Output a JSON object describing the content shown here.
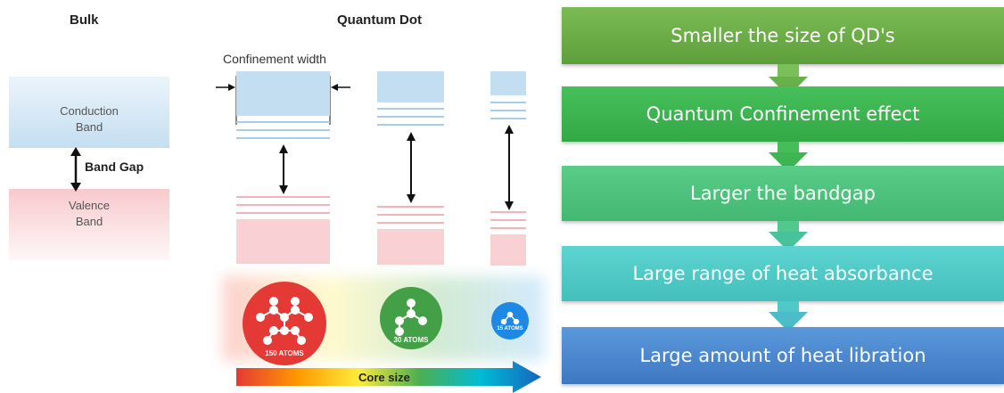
{
  "left_diagram": {
    "bulk_title": "Bulk",
    "qd_title": "Quantum Dot",
    "conduction_label": "Conduction\nBand",
    "valence_label": "Valence\nBand",
    "band_gap_label": "Band Gap",
    "confinement_label": "Confinement width",
    "core_size_label": "Core size",
    "atom_clusters": [
      {
        "caption": "150 ATOMS",
        "color": "#e53935"
      },
      {
        "caption": "30 ATOMS",
        "color": "#43a047"
      },
      {
        "caption": "15 ATOMS",
        "color": "#1e88e5"
      }
    ]
  },
  "flow": {
    "steps": [
      {
        "label": "Smaller the size of QD's",
        "color": "#6aae46"
      },
      {
        "label": "Quantum Confinement effect",
        "color": "#3cb54a"
      },
      {
        "label": "Larger the bandgap",
        "color": "#4cc27d"
      },
      {
        "label": "Large range of heat absorbance",
        "color": "#4fc9c6"
      },
      {
        "label": "Large amount of heat libration",
        "color": "#4a88cf"
      }
    ]
  }
}
